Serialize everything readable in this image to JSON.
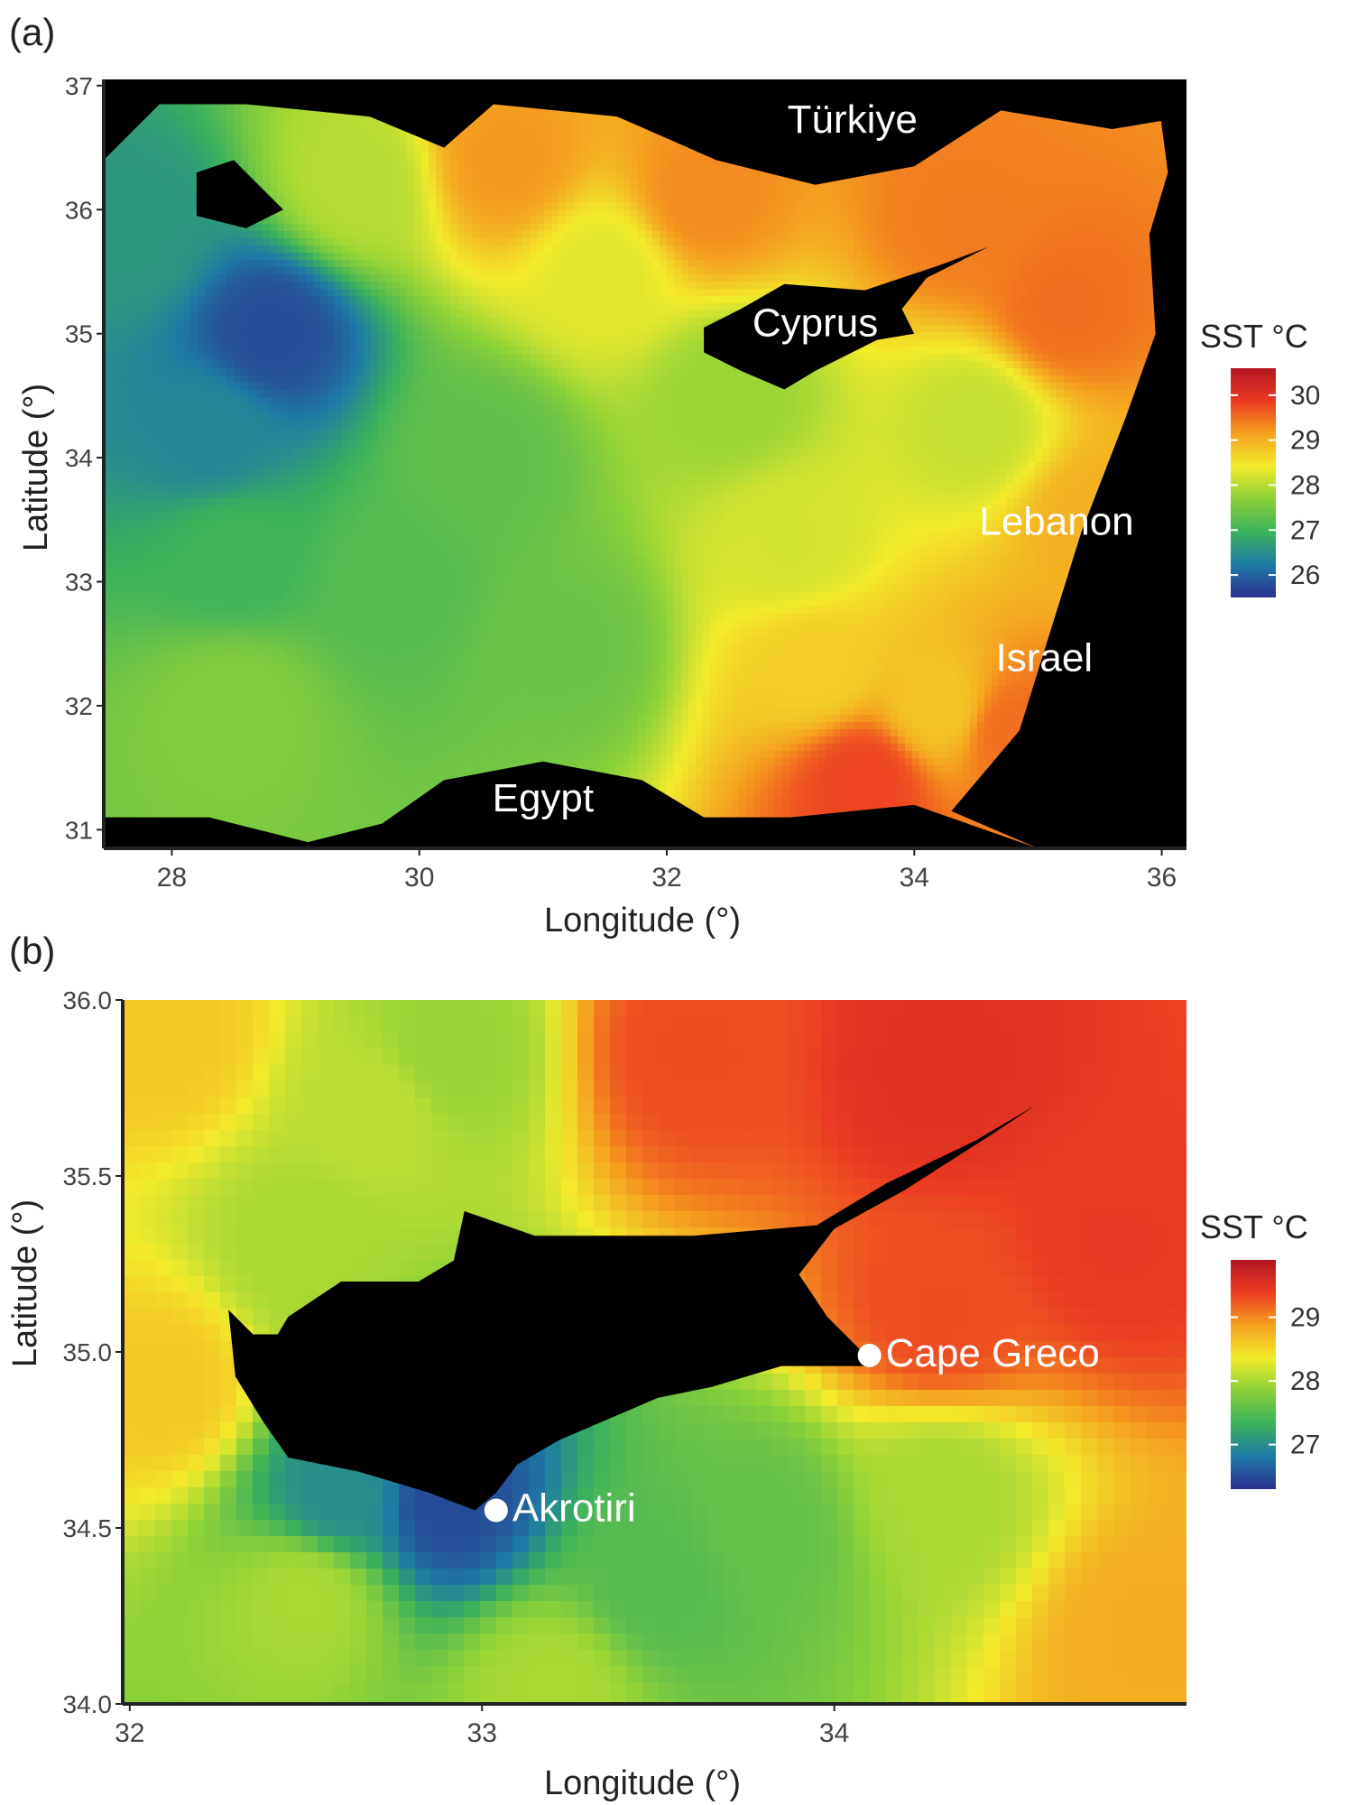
{
  "chart_data": [
    {
      "type": "heatmap",
      "panel_label": "(a)",
      "title": "",
      "xlabel": "Longitude (°)",
      "ylabel": "Latitude (°)",
      "xlim": [
        27.45,
        36.2
      ],
      "ylim": [
        30.85,
        37.05
      ],
      "xticks": [
        28,
        30,
        32,
        34,
        36
      ],
      "yticks": [
        31,
        32,
        33,
        34,
        35,
        36,
        37
      ],
      "grid": false,
      "legend": {
        "title": "SST °C",
        "ticks": [
          26,
          27,
          28,
          29,
          30
        ],
        "range": [
          25.5,
          30.6
        ],
        "placement": "right"
      },
      "colormap": [
        "#2b2f8f",
        "#1d7aa6",
        "#3bb25a",
        "#8ad03a",
        "#f2ec2a",
        "#f5a21f",
        "#ec3a22",
        "#b31622"
      ],
      "land_color": "#000000",
      "place_labels": [
        {
          "text": "Türkiye",
          "lon": 33.5,
          "lat": 36.62
        },
        {
          "text": "Cyprus",
          "lon": 33.2,
          "lat": 34.98
        },
        {
          "text": "Lebanon",
          "lon": 35.15,
          "lat": 33.38
        },
        {
          "text": "Israel",
          "lon": 35.05,
          "lat": 32.28
        },
        {
          "text": "Egypt",
          "lon": 31.0,
          "lat": 31.15
        }
      ],
      "sst_anchor_points": [
        {
          "lon": 28.8,
          "lat": 35.0,
          "sst": 25.8
        },
        {
          "lon": 28.3,
          "lat": 34.2,
          "sst": 26.4
        },
        {
          "lon": 27.7,
          "lat": 35.8,
          "sst": 26.6
        },
        {
          "lon": 28.5,
          "lat": 33.2,
          "sst": 27.0
        },
        {
          "lon": 29.8,
          "lat": 33.0,
          "sst": 27.2
        },
        {
          "lon": 30.5,
          "lat": 34.0,
          "sst": 27.3
        },
        {
          "lon": 31.2,
          "lat": 32.5,
          "sst": 27.4
        },
        {
          "lon": 28.5,
          "lat": 32.0,
          "sst": 27.6
        },
        {
          "lon": 32.5,
          "lat": 34.5,
          "sst": 27.8
        },
        {
          "lon": 31.5,
          "lat": 35.5,
          "sst": 28.3
        },
        {
          "lon": 29.5,
          "lat": 36.2,
          "sst": 28.0
        },
        {
          "lon": 33.0,
          "lat": 33.3,
          "sst": 28.2
        },
        {
          "lon": 33.2,
          "lat": 32.3,
          "sst": 28.7
        },
        {
          "lon": 34.2,
          "lat": 32.0,
          "sst": 28.8
        },
        {
          "lon": 34.5,
          "lat": 34.3,
          "sst": 28.1
        },
        {
          "lon": 30.7,
          "lat": 36.4,
          "sst": 29.2
        },
        {
          "lon": 32.3,
          "lat": 36.1,
          "sst": 29.3
        },
        {
          "lon": 34.4,
          "lat": 35.9,
          "sst": 29.4
        },
        {
          "lon": 35.2,
          "lat": 35.2,
          "sst": 29.5
        },
        {
          "lon": 35.5,
          "lat": 33.5,
          "sst": 29.0
        },
        {
          "lon": 33.6,
          "lat": 31.4,
          "sst": 29.8
        },
        {
          "lon": 34.8,
          "lat": 31.8,
          "sst": 29.5
        }
      ]
    },
    {
      "type": "heatmap",
      "panel_label": "(b)",
      "title": "",
      "xlabel": "Longitude (°)",
      "ylabel": "Latitude (°)",
      "xlim": [
        31.98,
        35.0
      ],
      "ylim": [
        34.0,
        36.0
      ],
      "xticks": [
        32,
        33,
        34
      ],
      "yticks": [
        "34.0",
        "34.5",
        "35.0",
        "35.5",
        "36.0"
      ],
      "grid": false,
      "legend": {
        "title": "SST °C",
        "ticks": [
          27,
          28,
          29
        ],
        "range": [
          26.3,
          29.9
        ],
        "placement": "right"
      },
      "colormap": [
        "#2b2f8f",
        "#1d7aa6",
        "#3bb25a",
        "#8ad03a",
        "#f2ec2a",
        "#f5a21f",
        "#ec3a22",
        "#b31622"
      ],
      "land_color": "#000000",
      "points": [
        {
          "name": "Cape Greco",
          "lon": 34.1,
          "lat": 34.99
        },
        {
          "name": "Akrotiri",
          "lon": 33.04,
          "lat": 34.55
        }
      ],
      "sst_anchor_points": [
        {
          "lon": 32.1,
          "lat": 35.9,
          "sst": 28.6
        },
        {
          "lon": 32.7,
          "lat": 35.7,
          "sst": 28.1
        },
        {
          "lon": 32.5,
          "lat": 35.3,
          "sst": 28.0
        },
        {
          "lon": 32.9,
          "lat": 35.85,
          "sst": 27.9
        },
        {
          "lon": 33.6,
          "lat": 35.85,
          "sst": 29.3
        },
        {
          "lon": 34.3,
          "lat": 35.8,
          "sst": 29.5
        },
        {
          "lon": 34.8,
          "lat": 35.3,
          "sst": 29.4
        },
        {
          "lon": 34.3,
          "lat": 35.1,
          "sst": 29.3
        },
        {
          "lon": 32.1,
          "lat": 34.9,
          "sst": 28.6
        },
        {
          "lon": 32.5,
          "lat": 34.3,
          "sst": 28.0
        },
        {
          "lon": 32.9,
          "lat": 34.58,
          "sst": 26.5
        },
        {
          "lon": 32.6,
          "lat": 34.6,
          "sst": 27.0
        },
        {
          "lon": 33.5,
          "lat": 34.35,
          "sst": 27.5
        },
        {
          "lon": 33.8,
          "lat": 34.5,
          "sst": 27.6
        },
        {
          "lon": 34.3,
          "lat": 34.6,
          "sst": 28.0
        },
        {
          "lon": 34.9,
          "lat": 34.2,
          "sst": 28.8
        },
        {
          "lon": 33.2,
          "lat": 34.05,
          "sst": 28.0
        }
      ]
    }
  ]
}
